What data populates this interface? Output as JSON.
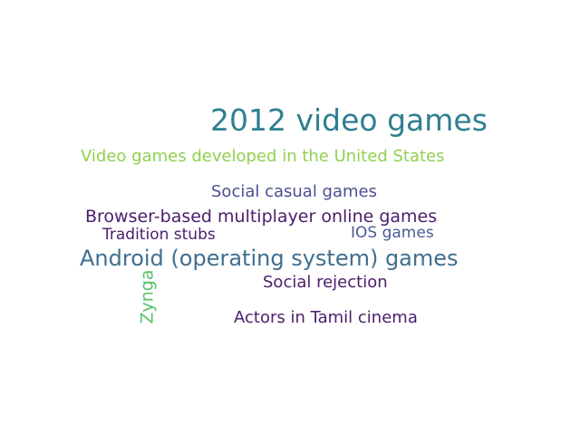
{
  "words": [
    {
      "text": "2012 video games",
      "color": "#2f7f8f"
    },
    {
      "text": "Video games developed in the United States",
      "color": "#8fd14f"
    },
    {
      "text": "Social casual games",
      "color": "#4b4f8f"
    },
    {
      "text": "Browser-based multiplayer online games",
      "color": "#4b1d6b"
    },
    {
      "text": "Tradition stubs",
      "color": "#4b1d6b"
    },
    {
      "text": "IOS games",
      "color": "#4b5a93"
    },
    {
      "text": "Android (operating system) games",
      "color": "#3f6f8f"
    },
    {
      "text": "Social rejection",
      "color": "#4b1d6b"
    },
    {
      "text": "Actors in Tamil cinema",
      "color": "#4b1d6b"
    },
    {
      "text": "Zynga",
      "color": "#56c26a"
    }
  ]
}
